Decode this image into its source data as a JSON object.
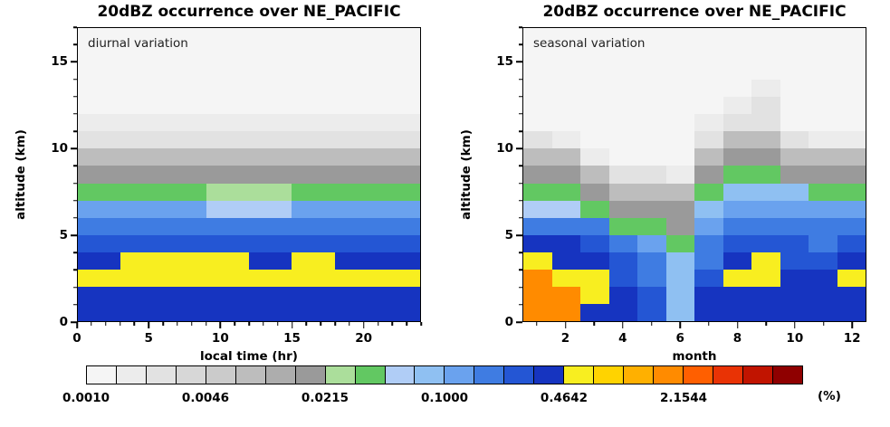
{
  "figure": {
    "background": "#ffffff"
  },
  "colorbar": {
    "vmin": 0.001,
    "cells": 24,
    "cells_per_decade": 6,
    "label_every": 4,
    "labels": [
      "0.0010",
      "0.0046",
      "0.0215",
      "0.1000",
      "0.4642",
      "2.1544"
    ],
    "unit_label": "(%)",
    "colors": [
      "#f5f5f5",
      "#ececec",
      "#e2e2e2",
      "#d7d7d7",
      "#cbcbcb",
      "#bdbdbd",
      "#adadad",
      "#9a9a9a",
      "#abde9b",
      "#62c862",
      "#b0cdf6",
      "#8fc0f2",
      "#6aa2ee",
      "#3f7ce2",
      "#2456d4",
      "#1634c0",
      "#f8ee20",
      "#ffd300",
      "#ffb000",
      "#ff8b00",
      "#ff5f00",
      "#e93305",
      "#c11400",
      "#8f0000"
    ]
  },
  "chart_data": [
    {
      "type": "heatmap",
      "title": "20dBZ occurrence over NE_PACIFIC",
      "annotation": "diurnal variation",
      "xlabel": "local time (hr)",
      "ylabel": "altitude (km)",
      "units": "%",
      "xlim": [
        0,
        24
      ],
      "ylim": [
        0,
        17
      ],
      "x_major_ticks": [
        0,
        5,
        10,
        15,
        20
      ],
      "x_tick_labels": [
        "0",
        "5",
        "10",
        "15",
        "20"
      ],
      "x_minor_step": 1,
      "y_major_ticks": [
        0,
        5,
        10,
        15
      ],
      "y_tick_labels": [
        "0",
        "5",
        "10",
        "15"
      ],
      "y_minor_step": 1,
      "x_start": 0,
      "x_binwidth": 3,
      "y_start": 0,
      "y_binheight": 1,
      "columns": [
        [
          0.4,
          0.4,
          0.55,
          0.4,
          0.28,
          0.19,
          0.13,
          0.035,
          0.018,
          0.008,
          0.003,
          0.0016,
          0.0011,
          0.0011,
          0.0011,
          0.0011,
          0.0011
        ],
        [
          0.4,
          0.4,
          0.55,
          0.55,
          0.28,
          0.19,
          0.13,
          0.035,
          0.018,
          0.008,
          0.003,
          0.0016,
          0.0011,
          0.0011,
          0.0011,
          0.0011,
          0.0011
        ],
        [
          0.4,
          0.4,
          0.55,
          0.55,
          0.28,
          0.19,
          0.13,
          0.035,
          0.018,
          0.008,
          0.003,
          0.0016,
          0.0011,
          0.0011,
          0.0011,
          0.0011,
          0.0011
        ],
        [
          0.4,
          0.4,
          0.55,
          0.55,
          0.28,
          0.19,
          0.055,
          0.025,
          0.018,
          0.008,
          0.003,
          0.0016,
          0.0011,
          0.0011,
          0.0011,
          0.0011,
          0.0011
        ],
        [
          0.4,
          0.4,
          0.55,
          0.4,
          0.28,
          0.19,
          0.055,
          0.025,
          0.018,
          0.008,
          0.003,
          0.0016,
          0.0011,
          0.0011,
          0.0011,
          0.0011,
          0.0011
        ],
        [
          0.4,
          0.4,
          0.55,
          0.55,
          0.28,
          0.19,
          0.13,
          0.035,
          0.018,
          0.008,
          0.003,
          0.0016,
          0.0011,
          0.0011,
          0.0011,
          0.0011,
          0.0011
        ],
        [
          0.4,
          0.4,
          0.55,
          0.4,
          0.28,
          0.19,
          0.13,
          0.035,
          0.018,
          0.008,
          0.003,
          0.0016,
          0.0011,
          0.0011,
          0.0011,
          0.0011,
          0.0011
        ],
        [
          0.4,
          0.4,
          0.55,
          0.4,
          0.28,
          0.19,
          0.13,
          0.035,
          0.018,
          0.008,
          0.003,
          0.0016,
          0.0011,
          0.0011,
          0.0011,
          0.0011,
          0.0011
        ]
      ]
    },
    {
      "type": "heatmap",
      "title": "20dBZ occurrence over NE_PACIFIC",
      "annotation": "seasonal variation",
      "xlabel": "month",
      "ylabel": "altitude (km)",
      "units": "%",
      "xlim": [
        0.5,
        12.5
      ],
      "ylim": [
        0,
        17
      ],
      "x_major_ticks": [
        2,
        4,
        6,
        8,
        10,
        12
      ],
      "x_tick_labels": [
        "2",
        "4",
        "6",
        "8",
        "10",
        "12"
      ],
      "x_minor_step": 1,
      "y_major_ticks": [
        0,
        5,
        10,
        15
      ],
      "y_tick_labels": [
        "0",
        "5",
        "10",
        "15"
      ],
      "y_minor_step": 1,
      "x_start": 0.5,
      "x_binwidth": 1,
      "y_start": 0,
      "y_binheight": 1,
      "columns": [
        [
          1.8,
          1.8,
          1.8,
          0.55,
          0.4,
          0.19,
          0.055,
          0.035,
          0.018,
          0.008,
          0.003,
          0.0011,
          0.0011,
          0.0011,
          0.0011,
          0.0011,
          0.0011
        ],
        [
          1.8,
          1.8,
          0.55,
          0.4,
          0.4,
          0.19,
          0.055,
          0.035,
          0.018,
          0.008,
          0.0016,
          0.0011,
          0.0011,
          0.0011,
          0.0011,
          0.0011,
          0.0011
        ],
        [
          0.4,
          0.55,
          0.55,
          0.4,
          0.28,
          0.19,
          0.035,
          0.018,
          0.008,
          0.0016,
          0.0011,
          0.0011,
          0.0011,
          0.0011,
          0.0011,
          0.0011,
          0.0011
        ],
        [
          0.4,
          0.4,
          0.28,
          0.28,
          0.19,
          0.035,
          0.018,
          0.008,
          0.003,
          0.0011,
          0.0011,
          0.0011,
          0.0011,
          0.0011,
          0.0011,
          0.0011,
          0.0011
        ],
        [
          0.28,
          0.28,
          0.19,
          0.19,
          0.13,
          0.035,
          0.018,
          0.008,
          0.003,
          0.0011,
          0.0011,
          0.0011,
          0.0011,
          0.0011,
          0.0011,
          0.0011,
          0.0011
        ],
        [
          0.09,
          0.09,
          0.09,
          0.09,
          0.035,
          0.018,
          0.018,
          0.008,
          0.0016,
          0.0011,
          0.0011,
          0.0011,
          0.0011,
          0.0011,
          0.0011,
          0.0011,
          0.0011
        ],
        [
          0.4,
          0.4,
          0.28,
          0.19,
          0.19,
          0.13,
          0.08,
          0.035,
          0.018,
          0.008,
          0.003,
          0.0016,
          0.0011,
          0.0011,
          0.0011,
          0.0011,
          0.0011
        ],
        [
          0.4,
          0.4,
          0.55,
          0.4,
          0.28,
          0.19,
          0.13,
          0.08,
          0.035,
          0.018,
          0.008,
          0.003,
          0.0016,
          0.0011,
          0.0011,
          0.0011,
          0.0011
        ],
        [
          0.4,
          0.4,
          0.55,
          0.55,
          0.28,
          0.19,
          0.13,
          0.08,
          0.035,
          0.018,
          0.008,
          0.003,
          0.003,
          0.0016,
          0.0011,
          0.0011,
          0.0011
        ],
        [
          0.4,
          0.4,
          0.4,
          0.28,
          0.28,
          0.19,
          0.13,
          0.08,
          0.018,
          0.008,
          0.003,
          0.0011,
          0.0011,
          0.0011,
          0.0011,
          0.0011,
          0.0011
        ],
        [
          0.4,
          0.4,
          0.4,
          0.28,
          0.19,
          0.19,
          0.13,
          0.035,
          0.018,
          0.008,
          0.0016,
          0.0011,
          0.0011,
          0.0011,
          0.0011,
          0.0011,
          0.0011
        ],
        [
          0.4,
          0.4,
          0.55,
          0.4,
          0.28,
          0.19,
          0.13,
          0.035,
          0.018,
          0.008,
          0.0016,
          0.0011,
          0.0011,
          0.0011,
          0.0011,
          0.0011,
          0.0011
        ]
      ]
    }
  ]
}
